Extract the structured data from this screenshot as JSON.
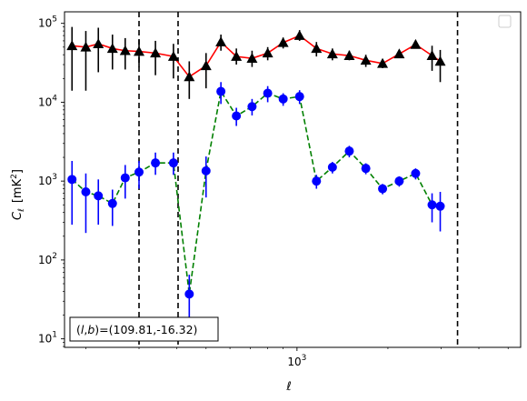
{
  "chart_data": {
    "type": "line",
    "xscale": "log",
    "yscale": "log",
    "xlim": [
      170,
      5500
    ],
    "ylim": [
      7.8,
      140000
    ],
    "xticks": [
      {
        "value": 1000,
        "base": "10",
        "exp": "3"
      }
    ],
    "yticks": [
      {
        "value": 10,
        "base": "10",
        "exp": "1"
      },
      {
        "value": 100,
        "base": "10",
        "exp": "2"
      },
      {
        "value": 1000,
        "base": "10",
        "exp": "3"
      },
      {
        "value": 10000,
        "base": "10",
        "exp": "4"
      },
      {
        "value": 100000,
        "base": "10",
        "exp": "5"
      }
    ],
    "xlabel": "ℓ",
    "ylabel": "C",
    "ylabel_sub": "ℓ",
    "ylabel_unit_pre": "[mK",
    "ylabel_unit_sup": "2",
    "ylabel_unit_post": "]",
    "annotation": {
      "pre": "(",
      "l": "l",
      "comma": ",",
      "b": "b",
      "post": ")=(109.81,-16.32)"
    },
    "legend": "upper right, empty box",
    "vlines": [
      300,
      404,
      3400
    ],
    "series": [
      {
        "marker": "triangle",
        "color": "#ff0000",
        "marker_color": "#000000",
        "linestyle": "solid",
        "points": [
          {
            "x": 180,
            "y": 52000,
            "lo": 14000,
            "hi": 90000
          },
          {
            "x": 200,
            "y": 50000,
            "lo": 14000,
            "hi": 80000
          },
          {
            "x": 220,
            "y": 55000,
            "lo": 24000,
            "hi": 88000
          },
          {
            "x": 245,
            "y": 48000,
            "lo": 26000,
            "hi": 72000
          },
          {
            "x": 270,
            "y": 45000,
            "lo": 26000,
            "hi": 65000
          },
          {
            "x": 300,
            "y": 44000,
            "lo": 28000,
            "hi": 62000
          },
          {
            "x": 340,
            "y": 42000,
            "lo": 22000,
            "hi": 60000
          },
          {
            "x": 390,
            "y": 38000,
            "lo": 20000,
            "hi": 55000
          },
          {
            "x": 440,
            "y": 21000,
            "lo": 11000,
            "hi": 33000
          },
          {
            "x": 500,
            "y": 29000,
            "lo": 15000,
            "hi": 42000
          },
          {
            "x": 560,
            "y": 58000,
            "lo": 45000,
            "hi": 72000
          },
          {
            "x": 630,
            "y": 38000,
            "lo": 30000,
            "hi": 48000
          },
          {
            "x": 710,
            "y": 36000,
            "lo": 28000,
            "hi": 45000
          },
          {
            "x": 800,
            "y": 42000,
            "lo": 34000,
            "hi": 50000
          },
          {
            "x": 900,
            "y": 57000,
            "lo": 48000,
            "hi": 66000
          },
          {
            "x": 1020,
            "y": 70000,
            "lo": 60000,
            "hi": 82000
          },
          {
            "x": 1160,
            "y": 48000,
            "lo": 38000,
            "hi": 58000
          },
          {
            "x": 1310,
            "y": 41000,
            "lo": 34000,
            "hi": 48000
          },
          {
            "x": 1490,
            "y": 39000,
            "lo": 34000,
            "hi": 45000
          },
          {
            "x": 1690,
            "y": 34000,
            "lo": 28000,
            "hi": 40000
          },
          {
            "x": 1920,
            "y": 31000,
            "lo": 27000,
            "hi": 35000
          },
          {
            "x": 2180,
            "y": 41000,
            "lo": 38000,
            "hi": 45000
          },
          {
            "x": 2470,
            "y": 54000,
            "lo": 48000,
            "hi": 60000
          },
          {
            "x": 2800,
            "y": 39000,
            "lo": 25000,
            "hi": 52000
          },
          {
            "x": 2980,
            "y": 33000,
            "lo": 18000,
            "hi": 46000
          }
        ]
      },
      {
        "marker": "circle",
        "color": "#008000",
        "marker_color": "#0000ff",
        "linestyle": "dashed",
        "points": [
          {
            "x": 180,
            "y": 1050,
            "lo": 280,
            "hi": 1800
          },
          {
            "x": 200,
            "y": 730,
            "lo": 220,
            "hi": 1250
          },
          {
            "x": 220,
            "y": 650,
            "lo": 280,
            "hi": 1050
          },
          {
            "x": 245,
            "y": 520,
            "lo": 270,
            "hi": 780
          },
          {
            "x": 270,
            "y": 1100,
            "lo": 600,
            "hi": 1600
          },
          {
            "x": 300,
            "y": 1300,
            "lo": 800,
            "hi": 1800
          },
          {
            "x": 340,
            "y": 1700,
            "lo": 1200,
            "hi": 2300
          },
          {
            "x": 390,
            "y": 1700,
            "lo": 1200,
            "hi": 2300
          },
          {
            "x": 440,
            "y": 37,
            "lo": 12,
            "hi": 65
          },
          {
            "x": 500,
            "y": 1350,
            "lo": 620,
            "hi": 2050
          },
          {
            "x": 560,
            "y": 13700,
            "lo": 9500,
            "hi": 18000
          },
          {
            "x": 630,
            "y": 6700,
            "lo": 5000,
            "hi": 8500
          },
          {
            "x": 710,
            "y": 8800,
            "lo": 6800,
            "hi": 11000
          },
          {
            "x": 800,
            "y": 13000,
            "lo": 10000,
            "hi": 16000
          },
          {
            "x": 900,
            "y": 11000,
            "lo": 9000,
            "hi": 13000
          },
          {
            "x": 1020,
            "y": 11800,
            "lo": 9500,
            "hi": 14200
          },
          {
            "x": 1160,
            "y": 1000,
            "lo": 800,
            "hi": 1200
          },
          {
            "x": 1310,
            "y": 1500,
            "lo": 1250,
            "hi": 1750
          },
          {
            "x": 1490,
            "y": 2400,
            "lo": 2000,
            "hi": 2800
          },
          {
            "x": 1690,
            "y": 1450,
            "lo": 1220,
            "hi": 1680
          },
          {
            "x": 1920,
            "y": 800,
            "lo": 680,
            "hi": 920
          },
          {
            "x": 2180,
            "y": 1000,
            "lo": 850,
            "hi": 1150
          },
          {
            "x": 2470,
            "y": 1250,
            "lo": 1050,
            "hi": 1450
          },
          {
            "x": 2800,
            "y": 500,
            "lo": 300,
            "hi": 700
          },
          {
            "x": 2980,
            "y": 480,
            "lo": 230,
            "hi": 730
          }
        ]
      }
    ]
  }
}
